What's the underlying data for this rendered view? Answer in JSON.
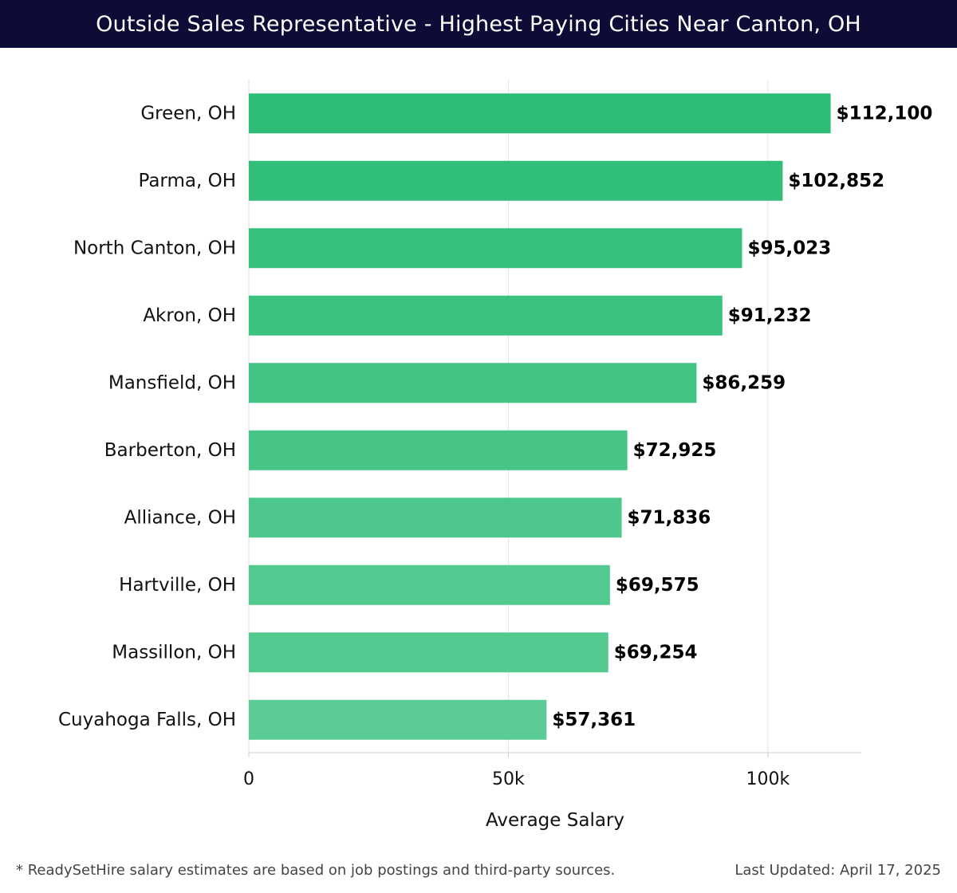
{
  "header": {
    "title": "Outside Sales Representative - Highest Paying Cities Near Canton, OH"
  },
  "chart_data": {
    "type": "bar",
    "orientation": "horizontal",
    "categories": [
      "Green, OH",
      "Parma, OH",
      "North Canton, OH",
      "Akron, OH",
      "Mansfield, OH",
      "Barberton, OH",
      "Alliance, OH",
      "Hartville, OH",
      "Massillon, OH",
      "Cuyahoga Falls, OH"
    ],
    "values": [
      112100,
      102852,
      95023,
      91232,
      86259,
      72925,
      71836,
      69575,
      69254,
      57361
    ],
    "value_labels": [
      "$112,100",
      "$102,852",
      "$95,023",
      "$91,232",
      "$86,259",
      "$72,925",
      "$71,836",
      "$69,575",
      "$69,254",
      "$57,361"
    ],
    "xlabel": "Average Salary",
    "ylabel": "",
    "xlim": [
      0,
      118000
    ],
    "x_ticks": [
      0,
      50000,
      100000
    ],
    "x_tick_labels": [
      "0",
      "50k",
      "100k"
    ],
    "grid": true,
    "bar_colors": [
      "#2ebd76",
      "#31be78",
      "#36c07c",
      "#3bc27f",
      "#40c383",
      "#47c587",
      "#4dc78b",
      "#52c98e",
      "#52c98e",
      "#5bcc96"
    ]
  },
  "footer": {
    "note": "* ReadySetHire salary estimates are based on job postings and third-party sources.",
    "updated": "Last Updated: April 17, 2025"
  }
}
